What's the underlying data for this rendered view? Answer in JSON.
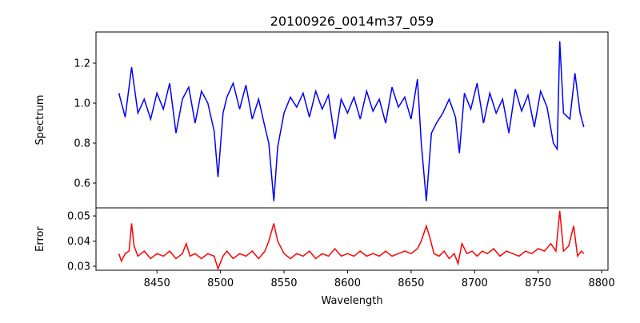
{
  "chart_data": [
    {
      "type": "line",
      "title": "20100926_0014m37_059",
      "xlabel": "",
      "ylabel": "Spectrum",
      "xlim": [
        8402,
        8805
      ],
      "ylim": [
        0.476,
        1.356
      ],
      "yticks": [
        0.6,
        0.8,
        1.0,
        1.2
      ],
      "ytick_labels": [
        "0.6",
        "0.8",
        "1.0",
        "1.2"
      ],
      "color": "#0000ff",
      "points": [
        [
          8420,
          1.05
        ],
        [
          8425,
          0.93
        ],
        [
          8430,
          1.18
        ],
        [
          8435,
          0.95
        ],
        [
          8440,
          1.02
        ],
        [
          8445,
          0.92
        ],
        [
          8450,
          1.05
        ],
        [
          8455,
          0.97
        ],
        [
          8460,
          1.1
        ],
        [
          8465,
          0.85
        ],
        [
          8470,
          1.02
        ],
        [
          8475,
          1.08
        ],
        [
          8480,
          0.9
        ],
        [
          8485,
          1.06
        ],
        [
          8490,
          1.0
        ],
        [
          8495,
          0.86
        ],
        [
          8498,
          0.63
        ],
        [
          8502,
          0.95
        ],
        [
          8505,
          1.03
        ],
        [
          8510,
          1.1
        ],
        [
          8515,
          0.97
        ],
        [
          8520,
          1.09
        ],
        [
          8525,
          0.92
        ],
        [
          8530,
          1.02
        ],
        [
          8535,
          0.88
        ],
        [
          8538,
          0.8
        ],
        [
          8542,
          0.51
        ],
        [
          8545,
          0.78
        ],
        [
          8550,
          0.95
        ],
        [
          8555,
          1.03
        ],
        [
          8560,
          0.98
        ],
        [
          8565,
          1.05
        ],
        [
          8570,
          0.93
        ],
        [
          8575,
          1.06
        ],
        [
          8580,
          0.97
        ],
        [
          8585,
          1.04
        ],
        [
          8590,
          0.82
        ],
        [
          8595,
          1.02
        ],
        [
          8600,
          0.95
        ],
        [
          8605,
          1.03
        ],
        [
          8610,
          0.92
        ],
        [
          8615,
          1.06
        ],
        [
          8620,
          0.96
        ],
        [
          8625,
          1.02
        ],
        [
          8630,
          0.9
        ],
        [
          8635,
          1.08
        ],
        [
          8640,
          0.98
        ],
        [
          8645,
          1.03
        ],
        [
          8650,
          0.92
        ],
        [
          8655,
          1.12
        ],
        [
          8658,
          0.8
        ],
        [
          8662,
          0.51
        ],
        [
          8666,
          0.85
        ],
        [
          8670,
          0.9
        ],
        [
          8675,
          0.95
        ],
        [
          8680,
          1.02
        ],
        [
          8685,
          0.93
        ],
        [
          8688,
          0.75
        ],
        [
          8692,
          1.05
        ],
        [
          8697,
          0.97
        ],
        [
          8702,
          1.1
        ],
        [
          8707,
          0.9
        ],
        [
          8712,
          1.05
        ],
        [
          8717,
          0.95
        ],
        [
          8722,
          1.02
        ],
        [
          8727,
          0.85
        ],
        [
          8732,
          1.07
        ],
        [
          8737,
          0.96
        ],
        [
          8742,
          1.04
        ],
        [
          8747,
          0.88
        ],
        [
          8752,
          1.06
        ],
        [
          8757,
          0.98
        ],
        [
          8762,
          0.8
        ],
        [
          8765,
          0.77
        ],
        [
          8767,
          1.31
        ],
        [
          8770,
          0.95
        ],
        [
          8775,
          0.92
        ],
        [
          8779,
          1.15
        ],
        [
          8783,
          0.95
        ],
        [
          8786,
          0.88
        ]
      ]
    },
    {
      "type": "line",
      "xlabel": "Wavelength",
      "ylabel": "Error",
      "xlim": [
        8402,
        8805
      ],
      "ylim": [
        0.0284,
        0.0532
      ],
      "yticks": [
        0.03,
        0.04,
        0.05
      ],
      "ytick_labels": [
        "0.03",
        "0.04",
        "0.05"
      ],
      "xticks": [
        8450,
        8500,
        8550,
        8600,
        8650,
        8700,
        8750,
        8800
      ],
      "xtick_labels": [
        "8450",
        "8500",
        "8550",
        "8600",
        "8650",
        "8700",
        "8750",
        "8800"
      ],
      "color": "#ff0000",
      "points": [
        [
          8420,
          0.035
        ],
        [
          8422,
          0.032
        ],
        [
          8425,
          0.035
        ],
        [
          8428,
          0.036
        ],
        [
          8430,
          0.047
        ],
        [
          8432,
          0.038
        ],
        [
          8435,
          0.034
        ],
        [
          8440,
          0.036
        ],
        [
          8445,
          0.033
        ],
        [
          8450,
          0.035
        ],
        [
          8455,
          0.034
        ],
        [
          8460,
          0.036
        ],
        [
          8465,
          0.033
        ],
        [
          8470,
          0.035
        ],
        [
          8473,
          0.039
        ],
        [
          8476,
          0.034
        ],
        [
          8480,
          0.035
        ],
        [
          8485,
          0.033
        ],
        [
          8490,
          0.035
        ],
        [
          8495,
          0.034
        ],
        [
          8498,
          0.029
        ],
        [
          8502,
          0.034
        ],
        [
          8505,
          0.036
        ],
        [
          8510,
          0.033
        ],
        [
          8515,
          0.035
        ],
        [
          8520,
          0.034
        ],
        [
          8525,
          0.036
        ],
        [
          8530,
          0.033
        ],
        [
          8535,
          0.036
        ],
        [
          8538,
          0.04
        ],
        [
          8542,
          0.047
        ],
        [
          8545,
          0.04
        ],
        [
          8550,
          0.035
        ],
        [
          8555,
          0.033
        ],
        [
          8560,
          0.035
        ],
        [
          8565,
          0.034
        ],
        [
          8570,
          0.036
        ],
        [
          8575,
          0.033
        ],
        [
          8580,
          0.035
        ],
        [
          8585,
          0.034
        ],
        [
          8590,
          0.037
        ],
        [
          8595,
          0.034
        ],
        [
          8600,
          0.035
        ],
        [
          8605,
          0.034
        ],
        [
          8610,
          0.036
        ],
        [
          8615,
          0.034
        ],
        [
          8620,
          0.035
        ],
        [
          8625,
          0.034
        ],
        [
          8630,
          0.036
        ],
        [
          8635,
          0.034
        ],
        [
          8640,
          0.035
        ],
        [
          8645,
          0.036
        ],
        [
          8650,
          0.035
        ],
        [
          8655,
          0.037
        ],
        [
          8658,
          0.04
        ],
        [
          8662,
          0.046
        ],
        [
          8665,
          0.041
        ],
        [
          8668,
          0.035
        ],
        [
          8672,
          0.034
        ],
        [
          8676,
          0.036
        ],
        [
          8680,
          0.033
        ],
        [
          8684,
          0.035
        ],
        [
          8687,
          0.031
        ],
        [
          8690,
          0.039
        ],
        [
          8694,
          0.035
        ],
        [
          8698,
          0.036
        ],
        [
          8702,
          0.034
        ],
        [
          8706,
          0.036
        ],
        [
          8710,
          0.035
        ],
        [
          8715,
          0.037
        ],
        [
          8720,
          0.034
        ],
        [
          8725,
          0.036
        ],
        [
          8730,
          0.035
        ],
        [
          8735,
          0.034
        ],
        [
          8740,
          0.036
        ],
        [
          8745,
          0.035
        ],
        [
          8750,
          0.037
        ],
        [
          8755,
          0.036
        ],
        [
          8760,
          0.039
        ],
        [
          8764,
          0.036
        ],
        [
          8767,
          0.052
        ],
        [
          8770,
          0.036
        ],
        [
          8774,
          0.038
        ],
        [
          8778,
          0.046
        ],
        [
          8781,
          0.034
        ],
        [
          8784,
          0.036
        ],
        [
          8786,
          0.035
        ]
      ]
    }
  ]
}
